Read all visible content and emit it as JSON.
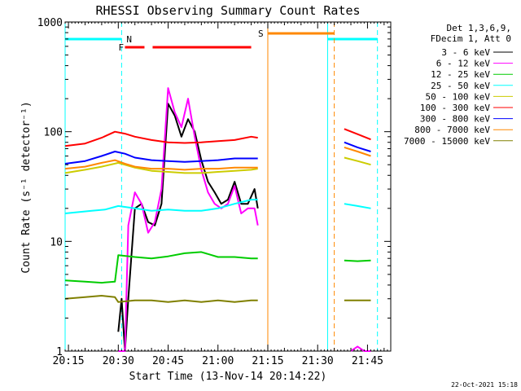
{
  "chart_data": {
    "type": "line",
    "title": "RHESSI Observing Summary Count Rates",
    "xlabel": "Start Time (13-Nov-14 20:14:22)",
    "ylabel": "Count Rate (s⁻¹ detector⁻¹)",
    "yscale": "log",
    "ylim": [
      1,
      1000
    ],
    "xlim": [
      "20:14",
      "21:52"
    ],
    "x_ticks": [
      "20:15",
      "20:30",
      "20:45",
      "21:00",
      "21:15",
      "21:30",
      "21:45"
    ],
    "y_ticks": [
      "1",
      "10",
      "100",
      "1000"
    ],
    "x_minutes_ticks": [
      20.25,
      20.5,
      20.75,
      21.0,
      21.25,
      21.5,
      21.75
    ],
    "legend_header": [
      "Det 1,3,6,9,",
      "FDecim 1, Att 0"
    ],
    "legend_position": "right",
    "timestamp": "22-Oct-2021 15:18",
    "series": [
      {
        "name": "3 - 6 keV",
        "color": "#000000",
        "segments": [
          {
            "x": [
              "20:30",
              "20:31",
              "20:32",
              "20:33",
              "20:35",
              "20:37",
              "20:39",
              "20:41",
              "20:43",
              "20:45",
              "20:47",
              "20:49",
              "20:51",
              "20:53",
              "20:55",
              "20:57",
              "20:59",
              "21:01",
              "21:03",
              "21:05",
              "21:07",
              "21:09",
              "21:11",
              "21:12"
            ],
            "y": [
              1.5,
              3,
              1,
              3,
              20,
              22,
              15,
              14,
              22,
              180,
              140,
              90,
              130,
              100,
              55,
              35,
              28,
              22,
              24,
              35,
              22,
              22,
              30,
              20
            ]
          }
        ]
      },
      {
        "name": "6 - 12 keV",
        "color": "#ff00ff",
        "segments": [
          {
            "x": [
              "20:30",
              "20:31",
              "20:32",
              "20:33",
              "20:35",
              "20:37",
              "20:39",
              "20:41",
              "20:43",
              "20:45",
              "20:47",
              "20:49",
              "20:51",
              "20:53",
              "20:55",
              "20:57",
              "20:59",
              "21:01",
              "21:03",
              "21:05",
              "21:07",
              "21:09",
              "21:11",
              "21:12"
            ],
            "y": [
              1,
              1,
              1,
              14,
              28,
              22,
              12,
              15,
              30,
              250,
              150,
              110,
              200,
              90,
              45,
              28,
              22,
              20,
              22,
              32,
              18,
              20,
              20,
              14
            ]
          },
          {
            "x": [
              "21:40",
              "21:42",
              "21:44",
              "21:46"
            ],
            "y": [
              1,
              1.1,
              1,
              1
            ]
          }
        ]
      },
      {
        "name": "12 - 25 keV",
        "color": "#00cc00",
        "segments": [
          {
            "x": [
              "20:14",
              "20:20",
              "20:25",
              "20:29",
              "20:30",
              "20:35",
              "20:40",
              "20:45",
              "20:50",
              "20:55",
              "21:00",
              "21:05",
              "21:10",
              "21:12"
            ],
            "y": [
              4.4,
              4.3,
              4.2,
              4.3,
              7.5,
              7.2,
              7,
              7.3,
              7.8,
              8,
              7.2,
              7.2,
              7,
              7
            ]
          },
          {
            "x": [
              "21:38",
              "21:42",
              "21:46"
            ],
            "y": [
              6.7,
              6.6,
              6.7
            ]
          }
        ]
      },
      {
        "name": "25 - 50 keV",
        "color": "#00ffff",
        "segments": [
          {
            "x": [
              "20:14",
              "20:18",
              "20:22",
              "20:26",
              "20:30",
              "20:35",
              "20:40",
              "20:45",
              "20:50",
              "20:55",
              "21:00",
              "21:05",
              "21:10",
              "21:12"
            ],
            "y": [
              18,
              18.5,
              19,
              19.5,
              21,
              20,
              19,
              19.5,
              19,
              19,
              20,
              22,
              24,
              24
            ]
          },
          {
            "x": [
              "21:38",
              "21:42",
              "21:46"
            ],
            "y": [
              22,
              21,
              20
            ]
          }
        ]
      },
      {
        "name": "50 - 100 keV",
        "color": "#cccc00",
        "segments": [
          {
            "x": [
              "20:14",
              "20:20",
              "20:25",
              "20:30",
              "20:35",
              "20:40",
              "20:45",
              "20:50",
              "20:55",
              "21:00",
              "21:05",
              "21:10",
              "21:12"
            ],
            "y": [
              42,
              45,
              48,
              52,
              47,
              44,
              43,
              42,
              42,
              43,
              44,
              45,
              46
            ]
          },
          {
            "x": [
              "21:38",
              "21:42",
              "21:46"
            ],
            "y": [
              58,
              54,
              50
            ]
          }
        ]
      },
      {
        "name": "100 - 300 keV",
        "color": "#ff0000",
        "segments": [
          {
            "x": [
              "20:14",
              "20:20",
              "20:25",
              "20:29",
              "20:32",
              "20:35",
              "20:40",
              "20:45",
              "20:50",
              "20:55",
              "21:00",
              "21:05",
              "21:10",
              "21:12"
            ],
            "y": [
              74,
              78,
              88,
              100,
              96,
              90,
              84,
              80,
              79,
              80,
              82,
              84,
              90,
              88
            ]
          },
          {
            "x": [
              "21:38",
              "21:42",
              "21:46"
            ],
            "y": [
              106,
              95,
              85
            ]
          }
        ]
      },
      {
        "name": "300 - 800 keV",
        "color": "#0000ff",
        "segments": [
          {
            "x": [
              "20:14",
              "20:20",
              "20:25",
              "20:29",
              "20:32",
              "20:35",
              "20:40",
              "20:45",
              "20:50",
              "20:55",
              "21:00",
              "21:05",
              "21:10",
              "21:12"
            ],
            "y": [
              51,
              54,
              60,
              66,
              63,
              58,
              55,
              54,
              53,
              54,
              55,
              57,
              57,
              57
            ]
          },
          {
            "x": [
              "21:38",
              "21:42",
              "21:46"
            ],
            "y": [
              80,
              72,
              66
            ]
          }
        ]
      },
      {
        "name": "800 - 7000 keV",
        "color": "#ff8800",
        "segments": [
          {
            "x": [
              "20:14",
              "20:20",
              "20:25",
              "20:29",
              "20:32",
              "20:35",
              "20:40",
              "20:45",
              "20:50",
              "20:55",
              "21:00",
              "21:05",
              "21:10",
              "21:12"
            ],
            "y": [
              46,
              48,
              52,
              55,
              51,
              48,
              46,
              46,
              45,
              46,
              46,
              47,
              47,
              47
            ]
          },
          {
            "x": [
              "21:38",
              "21:42",
              "21:46"
            ],
            "y": [
              72,
              66,
              60
            ]
          }
        ]
      },
      {
        "name": "7000 - 15000 keV",
        "color": "#808000",
        "segments": [
          {
            "x": [
              "20:14",
              "20:20",
              "20:25",
              "20:29",
              "20:30",
              "20:35",
              "20:40",
              "20:45",
              "20:50",
              "20:55",
              "21:00",
              "21:05",
              "21:10",
              "21:12"
            ],
            "y": [
              3,
              3.1,
              3.2,
              3.1,
              2.8,
              2.9,
              2.9,
              2.8,
              2.9,
              2.8,
              2.9,
              2.8,
              2.9,
              2.9
            ]
          },
          {
            "x": [
              "21:38",
              "21:42",
              "21:46"
            ],
            "y": [
              2.9,
              2.9,
              2.9
            ]
          }
        ]
      }
    ],
    "bands": [
      {
        "label": "N",
        "color": "#00ffff",
        "x_start": "20:14",
        "x_end": "20:31",
        "style": "dashed-end"
      },
      {
        "label": "",
        "color": "#00ffff",
        "x_start": "21:33",
        "x_end": "21:48",
        "style": "dashed-end"
      },
      {
        "label": "F",
        "color": "#ff0000",
        "x_start": "20:32",
        "x_end": "21:10",
        "style": "solid"
      },
      {
        "label": "S",
        "color": "#ff8800",
        "x_start": "21:15",
        "x_end": "21:35",
        "style": "dashed-end"
      }
    ]
  }
}
